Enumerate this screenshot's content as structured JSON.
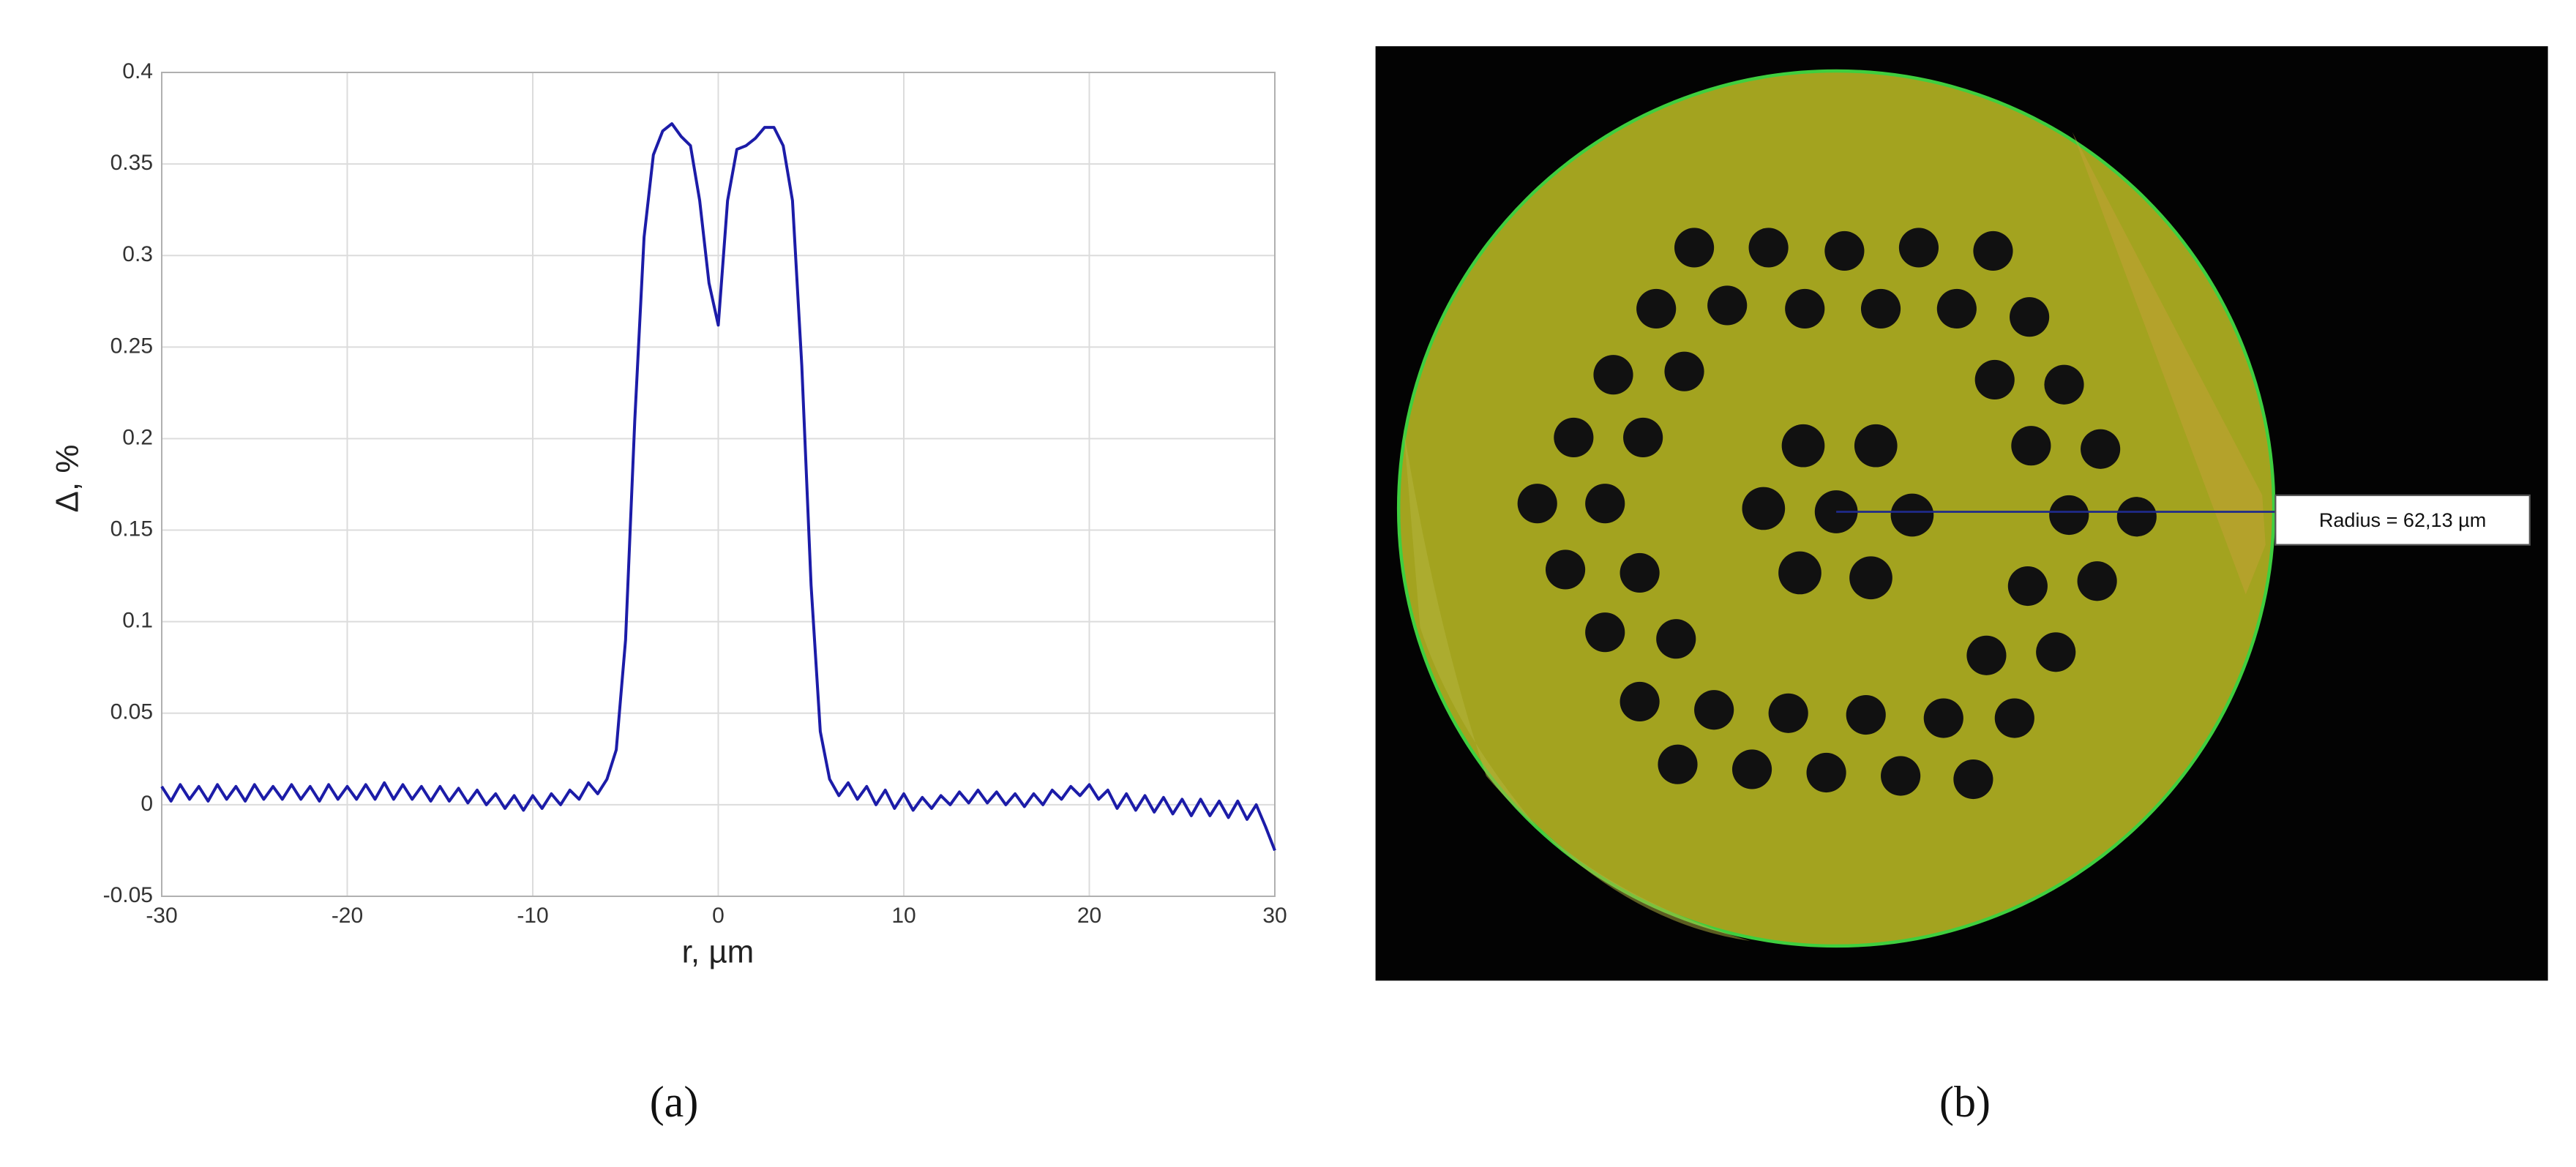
{
  "chart_data": {
    "type": "line",
    "xlabel": "r, µm",
    "ylabel": "Δ, %",
    "x": [
      -30,
      -29.5,
      -29,
      -28.5,
      -28,
      -27.5,
      -27,
      -26.5,
      -26,
      -25.5,
      -25,
      -24.5,
      -24,
      -23.5,
      -23,
      -22.5,
      -22,
      -21.5,
      -21,
      -20.5,
      -20,
      -19.5,
      -19,
      -18.5,
      -18,
      -17.5,
      -17,
      -16.5,
      -16,
      -15.5,
      -15,
      -14.5,
      -14,
      -13.5,
      -13,
      -12.5,
      -12,
      -11.5,
      -11,
      -10.5,
      -10,
      -9.5,
      -9,
      -8.5,
      -8,
      -7.5,
      -7,
      -6.5,
      -6,
      -5.5,
      -5,
      -4.5,
      -4,
      -3.5,
      -3,
      -2.5,
      -2,
      -1.5,
      -1,
      -0.5,
      0,
      0.5,
      1,
      1.5,
      2,
      2.5,
      3,
      3.5,
      4,
      4.5,
      5,
      5.5,
      6,
      6.5,
      7,
      7.5,
      8,
      8.5,
      9,
      9.5,
      10,
      10.5,
      11,
      11.5,
      12,
      12.5,
      13,
      13.5,
      14,
      14.5,
      15,
      15.5,
      16,
      16.5,
      17,
      17.5,
      18,
      18.5,
      19,
      19.5,
      20,
      20.5,
      21,
      21.5,
      22,
      22.5,
      23,
      23.5,
      24,
      24.5,
      25,
      25.5,
      26,
      26.5,
      27,
      27.5,
      28,
      28.5,
      29,
      29.5,
      30
    ],
    "values": [
      0.01,
      0.002,
      0.011,
      0.003,
      0.01,
      0.002,
      0.011,
      0.003,
      0.01,
      0.002,
      0.011,
      0.003,
      0.01,
      0.003,
      0.011,
      0.003,
      0.01,
      0.002,
      0.011,
      0.003,
      0.01,
      0.003,
      0.011,
      0.003,
      0.012,
      0.003,
      0.011,
      0.003,
      0.01,
      0.002,
      0.01,
      0.002,
      0.009,
      0.001,
      0.008,
      0.0,
      0.006,
      -0.002,
      0.005,
      -0.003,
      0.005,
      -0.002,
      0.006,
      0.0,
      0.008,
      0.003,
      0.012,
      0.006,
      0.014,
      0.03,
      0.09,
      0.21,
      0.31,
      0.355,
      0.368,
      0.372,
      0.365,
      0.36,
      0.33,
      0.285,
      0.262,
      0.33,
      0.358,
      0.36,
      0.364,
      0.37,
      0.37,
      0.36,
      0.33,
      0.24,
      0.12,
      0.04,
      0.014,
      0.005,
      0.012,
      0.003,
      0.01,
      0.0,
      0.008,
      -0.002,
      0.006,
      -0.003,
      0.004,
      -0.002,
      0.005,
      0.0,
      0.007,
      0.001,
      0.008,
      0.001,
      0.007,
      0.0,
      0.006,
      -0.001,
      0.006,
      0.0,
      0.008,
      0.003,
      0.01,
      0.005,
      0.011,
      0.003,
      0.008,
      -0.002,
      0.006,
      -0.003,
      0.005,
      -0.004,
      0.004,
      -0.005,
      0.003,
      -0.006,
      0.003,
      -0.006,
      0.002,
      -0.007,
      0.002,
      -0.008,
      0.0,
      -0.012,
      -0.025
    ],
    "color": "#1c1ca8",
    "xlim": [
      -30,
      30
    ],
    "xticks": [
      -30,
      -20,
      -10,
      0,
      10,
      20,
      30
    ],
    "ylim": [
      -0.05,
      0.4
    ],
    "yticks": [
      -0.05,
      0,
      0.05,
      0.1,
      0.15,
      0.2,
      0.25,
      0.3,
      0.35,
      0.4
    ],
    "grid": true
  },
  "photo": {
    "annotation": "Radius = 62,13 µm"
  },
  "captions": [
    "(a)",
    "(b)"
  ]
}
